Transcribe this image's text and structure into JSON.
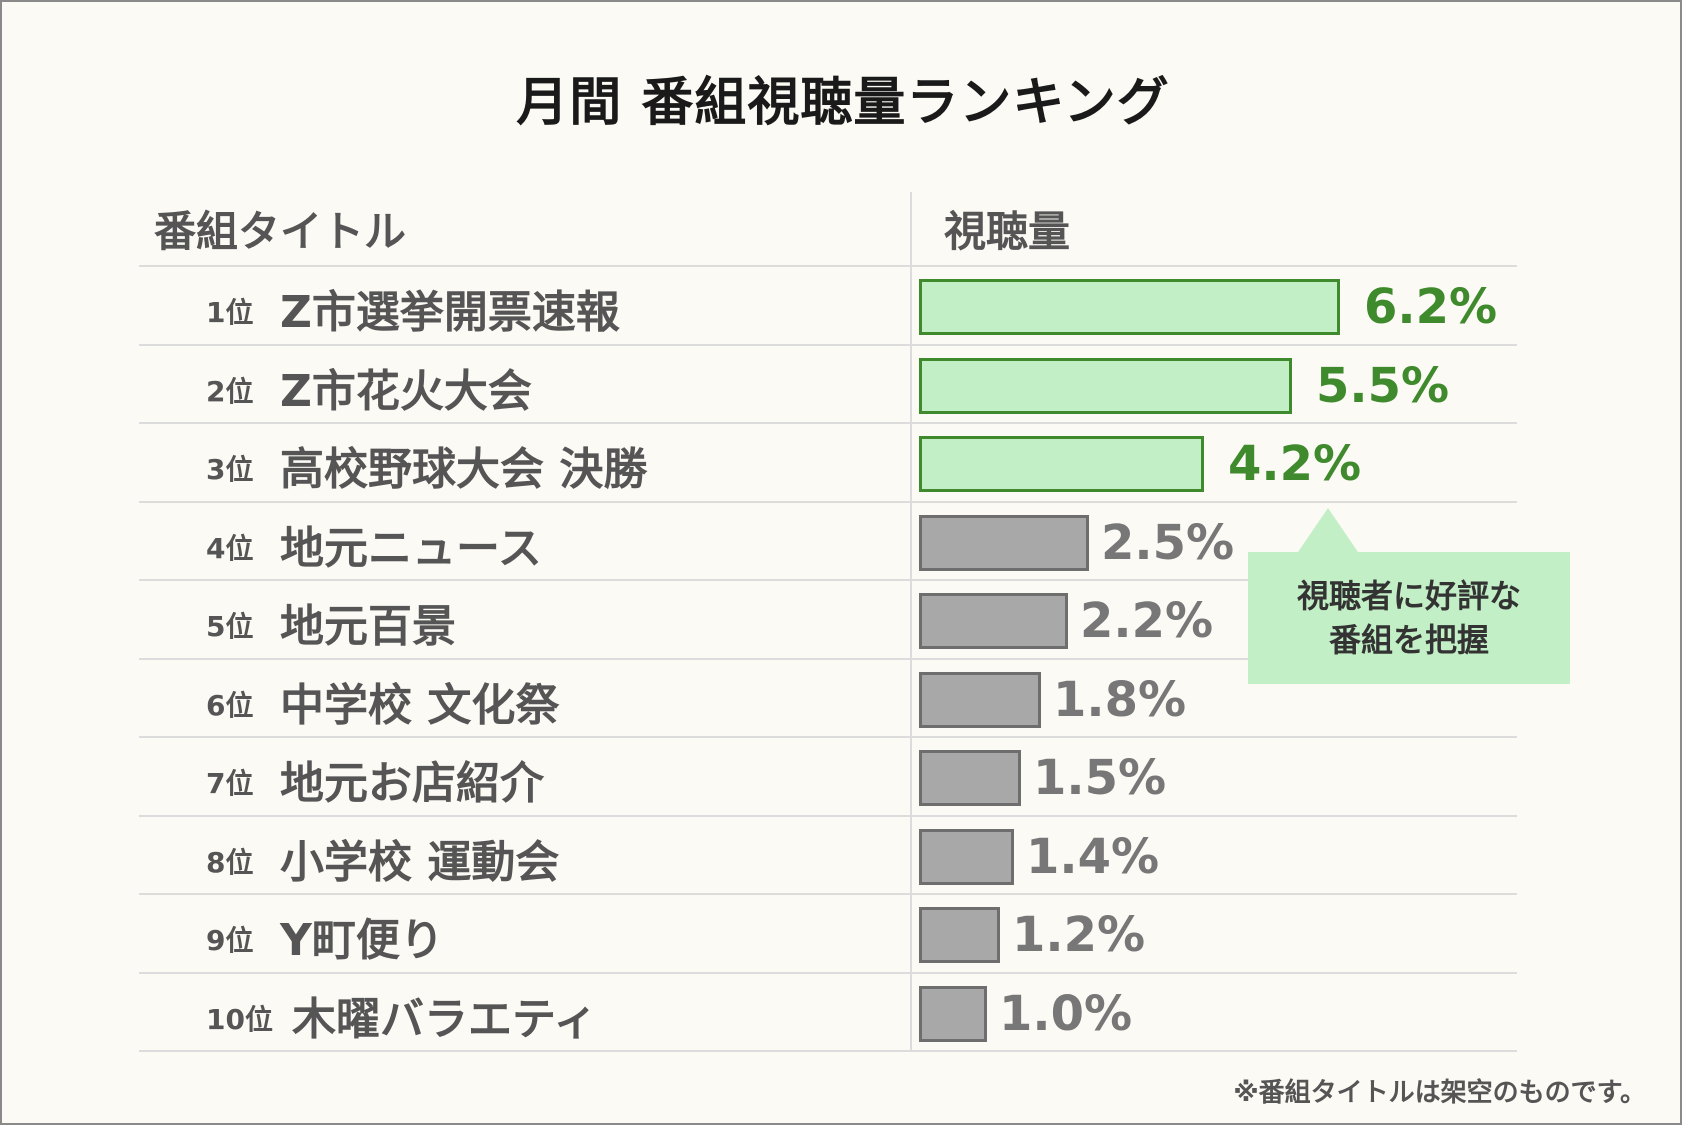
{
  "title": "月間 番組視聴量ランキング",
  "headers": {
    "program": "番組タイトル",
    "value": "視聴量"
  },
  "rank_suffix": "位",
  "callout": {
    "line1": "視聴者に好評な",
    "line2": "番組を把握"
  },
  "footnote": "※番組タイトルは架空のものです。",
  "colors": {
    "highlight_fill": "#c3efc6",
    "highlight_border": "#3f8a2d",
    "highlight_text": "#3f8a2d",
    "normal_fill": "#a8a8a8",
    "normal_border": "#6e6e6e",
    "normal_text": "#777777"
  },
  "chart_data": {
    "type": "bar",
    "orientation": "horizontal",
    "value_unit": "%",
    "xlim": [
      0,
      6.2
    ],
    "grid": false,
    "highlight_top_n": 3,
    "categories": [
      "Z市選挙開票速報",
      "Z市花火大会",
      "高校野球大会 決勝",
      "地元ニュース",
      "地元百景",
      "中学校 文化祭",
      "地元お店紹介",
      "小学校 運動会",
      "Y町便り",
      "木曜バラエティ"
    ],
    "ranks": [
      1,
      2,
      3,
      4,
      5,
      6,
      7,
      8,
      9,
      10
    ],
    "values": [
      6.2,
      5.5,
      4.2,
      2.5,
      2.2,
      1.8,
      1.5,
      1.4,
      1.2,
      1.0
    ],
    "value_labels": [
      "6.2%",
      "5.5%",
      "4.2%",
      "2.5%",
      "2.2%",
      "1.8%",
      "1.5%",
      "1.4%",
      "1.2%",
      "1.0%"
    ]
  }
}
